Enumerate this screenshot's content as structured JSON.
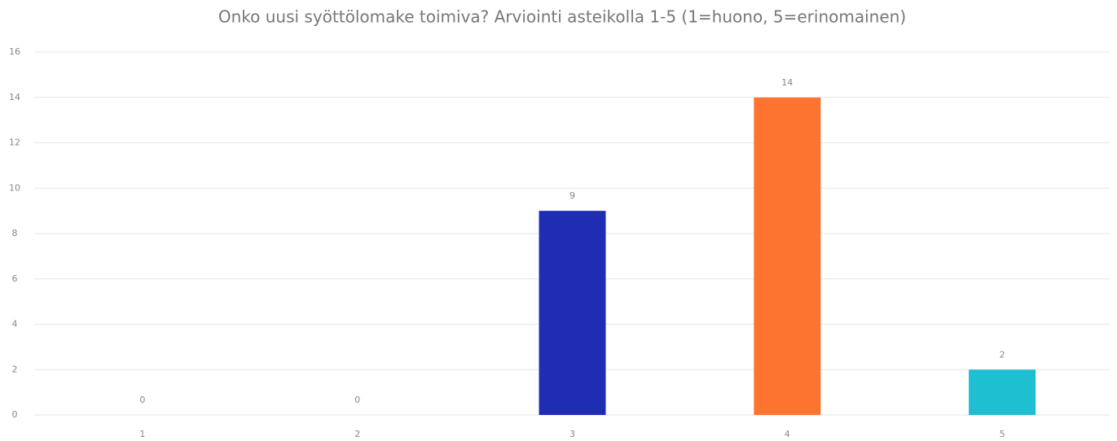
{
  "chart_data": {
    "type": "bar",
    "title": "Onko uusi syöttölomake toimiva? Arviointi asteikolla 1-5 (1=huono, 5=erinomainen)",
    "categories": [
      "1",
      "2",
      "3",
      "4",
      "5"
    ],
    "values": [
      0,
      0,
      9,
      14,
      2
    ],
    "colors": [
      null,
      null,
      "#1f2db5",
      "#fd7431",
      "#1dbfd1"
    ],
    "ylim": [
      0,
      16
    ],
    "yticks": [
      0,
      2,
      4,
      6,
      8,
      10,
      12,
      14,
      16
    ],
    "grid": true
  }
}
